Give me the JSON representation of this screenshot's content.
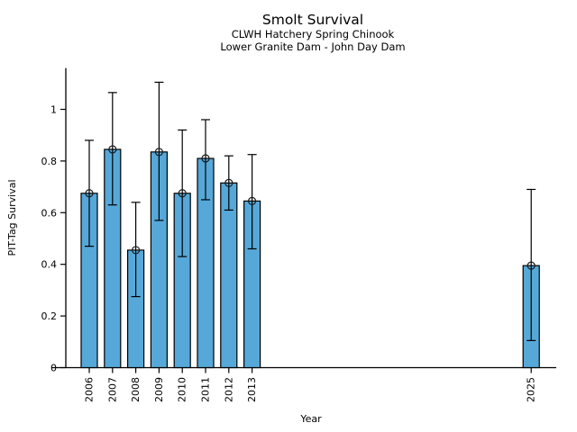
{
  "chart_data": {
    "type": "bar",
    "title": "Smolt Survival",
    "subtitle": [
      "CLWH Hatchery Spring Chinook",
      "Lower Granite Dam - John Day Dam"
    ],
    "xlabel": "Year",
    "ylabel": "PIT-Tag Survival",
    "categories": [
      2006,
      2007,
      2008,
      2009,
      2010,
      2011,
      2012,
      2013,
      2025
    ],
    "values": [
      0.675,
      0.845,
      0.455,
      0.835,
      0.675,
      0.81,
      0.715,
      0.645,
      0.395
    ],
    "error_low": [
      0.47,
      0.63,
      0.275,
      0.57,
      0.43,
      0.65,
      0.61,
      0.46,
      0.105
    ],
    "error_high": [
      0.88,
      1.065,
      0.64,
      1.105,
      0.92,
      0.96,
      0.82,
      0.825,
      0.69
    ],
    "yticks": [
      0,
      0.2,
      0.4,
      0.6,
      0.8,
      1
    ],
    "ylim": [
      0,
      1.16
    ],
    "xlim": [
      2005,
      2026
    ],
    "grid": false,
    "legend": null,
    "marker": "open-circle",
    "bar_color": "#56a8d8",
    "bar_edge_color": "#000000",
    "error_color": "#000000",
    "marker_color": "#1a1a1a",
    "background": "#ffffff"
  }
}
